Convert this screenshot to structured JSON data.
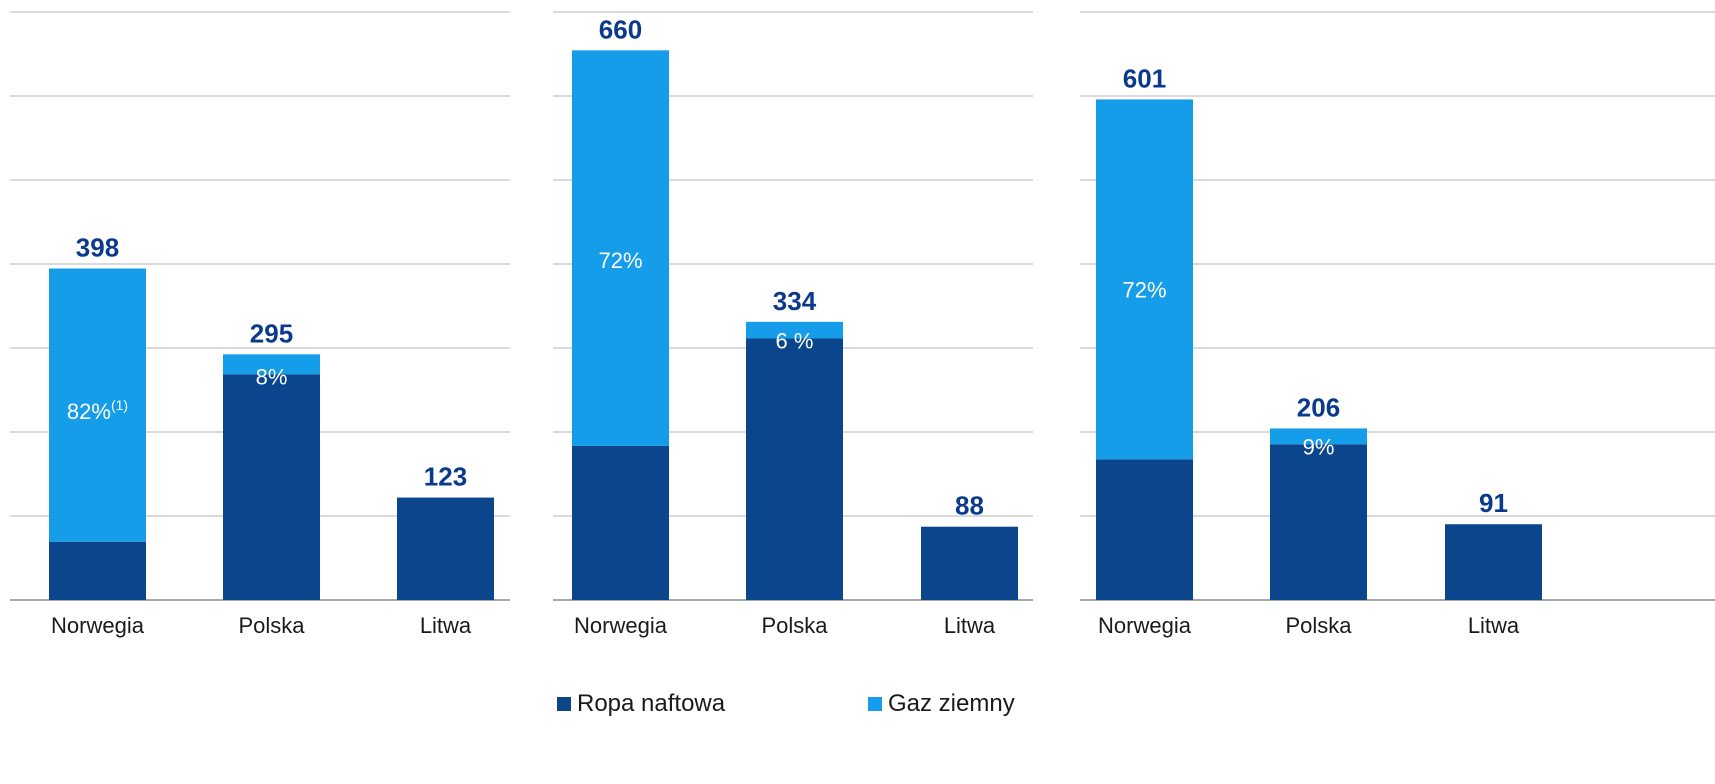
{
  "colors": {
    "oil": "#0B468C",
    "gas": "#159DEA",
    "total_label": "#0B3A8C",
    "grid": "#b3b3b3",
    "axis": "#8c8c8c"
  },
  "legend": {
    "oil": "Ropa naftowa",
    "gas": "Gaz ziemny"
  },
  "chart_data": [
    {
      "type": "bar",
      "stacked": true,
      "categories": [
        "Norwegia",
        "Polska",
        "Litwa"
      ],
      "series": [
        {
          "name": "Ropa naftowa",
          "values": [
            70,
            271,
            123
          ]
        },
        {
          "name": "Gaz ziemny",
          "values": [
            328,
            24,
            0
          ]
        }
      ],
      "totals": [
        "398",
        "295",
        "123"
      ],
      "gas_share_labels": [
        "82%",
        "8%",
        ""
      ],
      "gas_share_footnote": [
        "(1)",
        "",
        ""
      ],
      "ylim": [
        0,
        706
      ],
      "grid": true
    },
    {
      "type": "bar",
      "stacked": true,
      "categories": [
        "Norwegia",
        "Polska",
        "Litwa"
      ],
      "series": [
        {
          "name": "Ropa naftowa",
          "values": [
            185,
            314,
            88
          ]
        },
        {
          "name": "Gaz ziemny",
          "values": [
            475,
            20,
            0
          ]
        }
      ],
      "totals": [
        "660",
        "334",
        "88"
      ],
      "gas_share_labels": [
        "72%",
        "6 %",
        ""
      ],
      "gas_share_footnote": [
        "",
        "",
        ""
      ],
      "ylim": [
        0,
        706
      ],
      "grid": true
    },
    {
      "type": "bar",
      "stacked": true,
      "categories": [
        "Norwegia",
        "Polska",
        "Litwa"
      ],
      "series": [
        {
          "name": "Ropa naftowa",
          "values": [
            169,
            187,
            91
          ]
        },
        {
          "name": "Gaz ziemny",
          "values": [
            432,
            19,
            0
          ]
        }
      ],
      "totals": [
        "601",
        "206",
        "91"
      ],
      "gas_share_labels": [
        "72%",
        "9%",
        ""
      ],
      "gas_share_footnote": [
        "",
        "",
        ""
      ],
      "ylim": [
        0,
        706
      ],
      "grid": true
    }
  ]
}
